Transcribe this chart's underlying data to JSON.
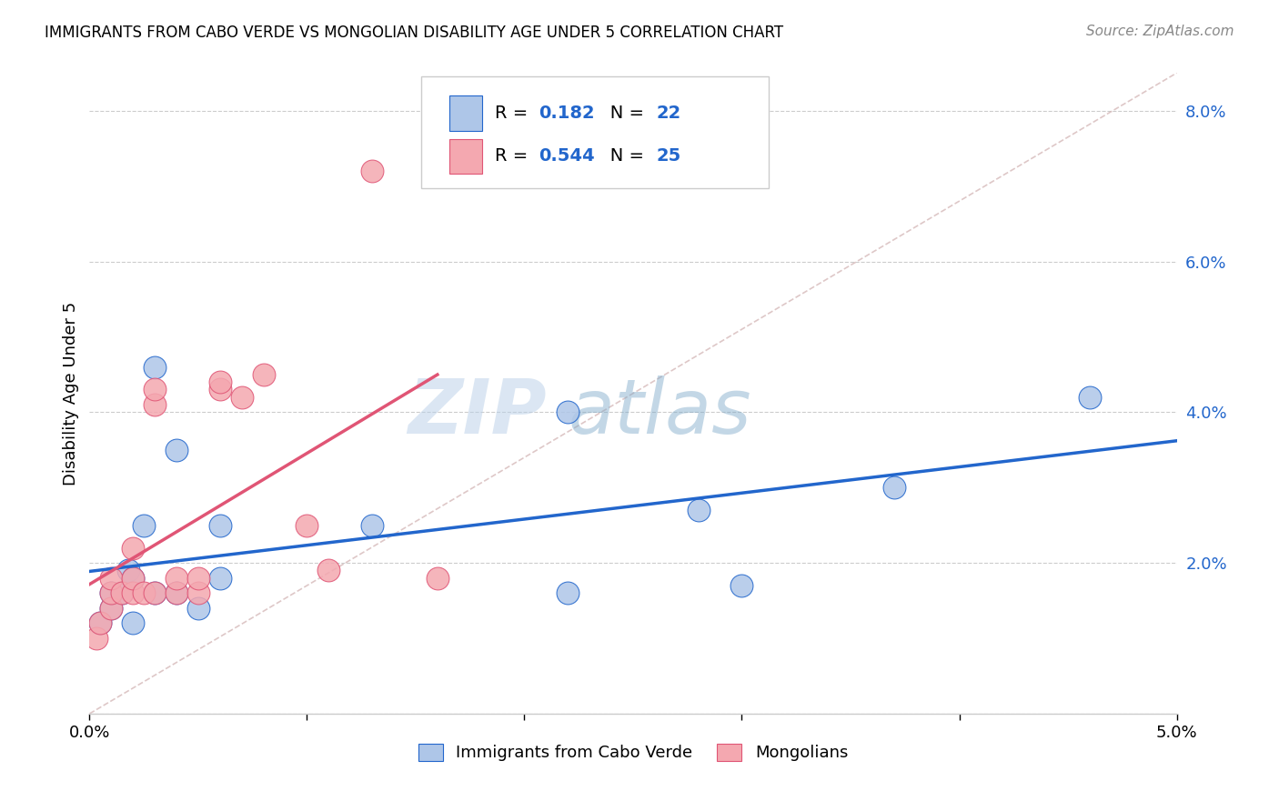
{
  "title": "IMMIGRANTS FROM CABO VERDE VS MONGOLIAN DISABILITY AGE UNDER 5 CORRELATION CHART",
  "source": "Source: ZipAtlas.com",
  "ylabel": "Disability Age Under 5",
  "legend_label_1": "Immigrants from Cabo Verde",
  "legend_label_2": "Mongolians",
  "r1": "0.182",
  "n1": "22",
  "r2": "0.544",
  "n2": "25",
  "xmin": 0.0,
  "xmax": 0.05,
  "ymin": 0.0,
  "ymax": 0.085,
  "yticks": [
    0.0,
    0.02,
    0.04,
    0.06,
    0.08
  ],
  "ytick_labels": [
    "",
    "2.0%",
    "4.0%",
    "6.0%",
    "8.0%"
  ],
  "xticks": [
    0.0,
    0.01,
    0.02,
    0.03,
    0.04,
    0.05
  ],
  "xtick_labels": [
    "0.0%",
    "",
    "",
    "",
    "",
    "5.0%"
  ],
  "grid_color": "#cccccc",
  "background_color": "#ffffff",
  "color_blue": "#aec6e8",
  "color_pink": "#f4a8b0",
  "line_blue": "#2266cc",
  "line_pink": "#e05575",
  "line_diag": "#d0b0b0",
  "watermark_zip": "ZIP",
  "watermark_atlas": "atlas",
  "cabo_verde_x": [
    0.0005,
    0.001,
    0.001,
    0.0015,
    0.0018,
    0.002,
    0.002,
    0.0025,
    0.003,
    0.003,
    0.004,
    0.004,
    0.005,
    0.006,
    0.006,
    0.013,
    0.022,
    0.022,
    0.028,
    0.03,
    0.037,
    0.046
  ],
  "cabo_verde_y": [
    0.012,
    0.014,
    0.016,
    0.016,
    0.019,
    0.012,
    0.018,
    0.025,
    0.016,
    0.046,
    0.016,
    0.035,
    0.014,
    0.018,
    0.025,
    0.025,
    0.016,
    0.04,
    0.027,
    0.017,
    0.03,
    0.042
  ],
  "mongolian_x": [
    0.0003,
    0.0005,
    0.001,
    0.001,
    0.001,
    0.0015,
    0.002,
    0.002,
    0.002,
    0.0025,
    0.003,
    0.003,
    0.003,
    0.004,
    0.004,
    0.005,
    0.005,
    0.006,
    0.006,
    0.007,
    0.008,
    0.01,
    0.011,
    0.013,
    0.016
  ],
  "mongolian_y": [
    0.01,
    0.012,
    0.014,
    0.016,
    0.018,
    0.016,
    0.016,
    0.018,
    0.022,
    0.016,
    0.016,
    0.041,
    0.043,
    0.016,
    0.018,
    0.016,
    0.018,
    0.043,
    0.044,
    0.042,
    0.045,
    0.025,
    0.019,
    0.072,
    0.018
  ],
  "blue_line_x0": 0.0,
  "blue_line_x1": 0.05,
  "pink_line_x0": 0.0,
  "pink_line_x1": 0.016
}
